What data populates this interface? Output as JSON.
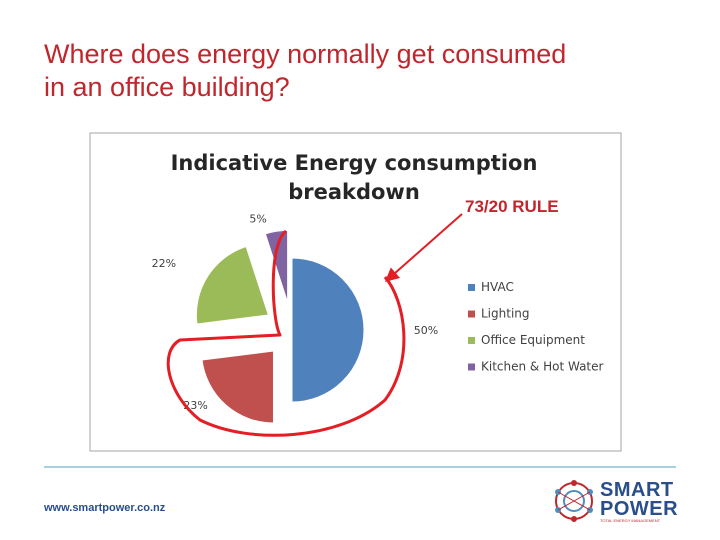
{
  "slide": {
    "title_line1": "Where does energy normally get consumed",
    "title_line2": "in an office building?"
  },
  "annotation": {
    "rule_label": "73/20 RULE"
  },
  "chart_data": {
    "type": "pie",
    "title_line1": "Indicative Energy consumption",
    "title_line2": "breakdown",
    "slices": [
      {
        "name": "HVAC",
        "value": 50,
        "label": "50%",
        "color": "#4f81bd",
        "exploded": false
      },
      {
        "name": "Lighting",
        "value": 23,
        "label": "23%",
        "color": "#c0504d",
        "exploded": true
      },
      {
        "name": "Office Equipment",
        "value": 22,
        "label": "22%",
        "color": "#9bbb59",
        "exploded": true
      },
      {
        "name": "Kitchen & Hot Water",
        "value": 5,
        "label": "5%",
        "color": "#8064a2",
        "exploded": true
      }
    ],
    "legend_position": "right"
  },
  "footer": {
    "url": "www.smartpower.co.nz",
    "logo_line1": "SMART",
    "logo_line2": "POWER",
    "logo_tagline": "TOTAL ENERGY MANAGEMENT"
  },
  "colors": {
    "title": "#c0272d",
    "highlight": "#e31e24",
    "chart_frame": "#a6a6a6",
    "footer_rule": "#a8d0df",
    "brand_blue": "#2a4e8a"
  }
}
